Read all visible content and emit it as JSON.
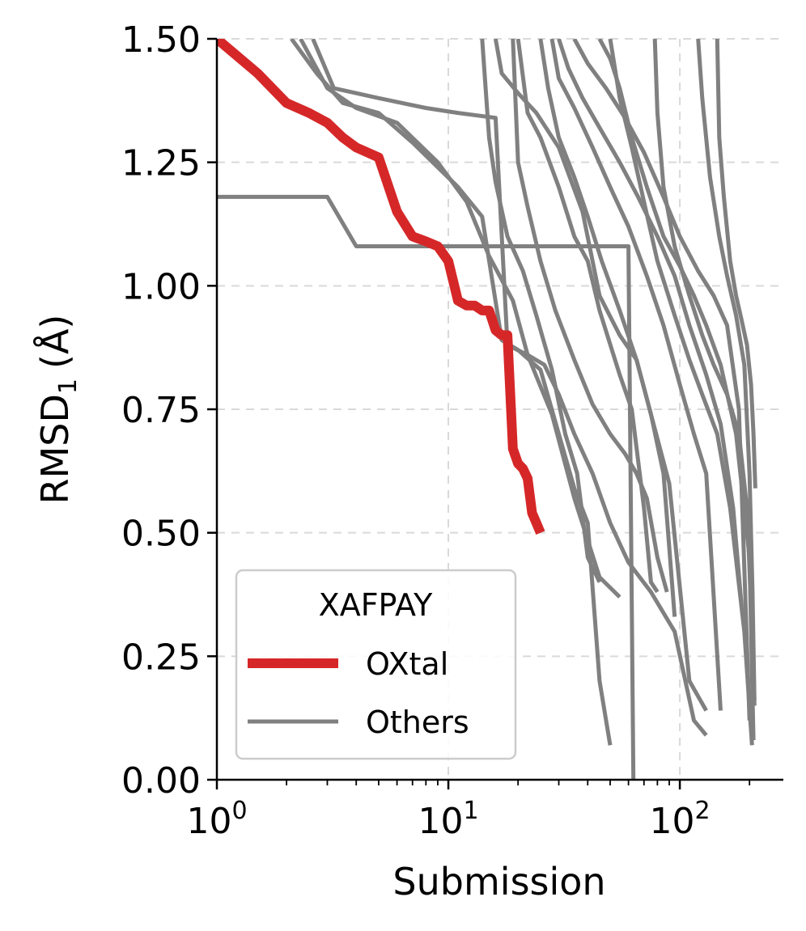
{
  "chart_data": {
    "type": "line",
    "xscale": "log",
    "xlim": [
      1,
      280
    ],
    "ylim": [
      0.0,
      1.5
    ],
    "xlabel": "Submission",
    "ylabel": "RMSD",
    "ylabel_subscript": "1",
    "ylabel_unit": "(Å)",
    "x_ticks": [
      {
        "value": 1,
        "base": "10",
        "exp": "0"
      },
      {
        "value": 10,
        "base": "10",
        "exp": "1"
      },
      {
        "value": 100,
        "base": "10",
        "exp": "2"
      }
    ],
    "y_ticks": [
      {
        "value": 0.0,
        "label": "0.00"
      },
      {
        "value": 0.25,
        "label": "0.25"
      },
      {
        "value": 0.5,
        "label": "0.50"
      },
      {
        "value": 0.75,
        "label": "0.75"
      },
      {
        "value": 1.0,
        "label": "1.00"
      },
      {
        "value": 1.25,
        "label": "1.25"
      },
      {
        "value": 1.5,
        "label": "1.50"
      }
    ],
    "grid": true,
    "legend": {
      "title": "XAFPAY",
      "position": "lower-left",
      "entries": [
        {
          "label": "OXtal",
          "color": "#d62728"
        },
        {
          "label": "Others",
          "color": "#808080"
        }
      ]
    },
    "colors": {
      "highlight": "#d62728",
      "others": "#808080",
      "grid": "#d9d9d9"
    },
    "highlight_series": {
      "name": "OXtal",
      "x": [
        1,
        1.5,
        2,
        2.5,
        3,
        3.5,
        4,
        5,
        6,
        7,
        8,
        9,
        10,
        11,
        12,
        13,
        14,
        15,
        16,
        17,
        18,
        19,
        20,
        21,
        22,
        23,
        24,
        25
      ],
      "y": [
        1.5,
        1.43,
        1.37,
        1.35,
        1.33,
        1.3,
        1.28,
        1.26,
        1.15,
        1.1,
        1.09,
        1.08,
        1.05,
        0.97,
        0.96,
        0.96,
        0.95,
        0.95,
        0.91,
        0.9,
        0.9,
        0.67,
        0.64,
        0.63,
        0.61,
        0.54,
        0.52,
        0.5
      ]
    },
    "other_series": [
      {
        "name": "others-1",
        "x": [
          1,
          3,
          4,
          60,
          63
        ],
        "y": [
          1.18,
          1.18,
          1.08,
          1.08,
          0.0
        ]
      },
      {
        "name": "others-2",
        "x": [
          2.1,
          2.7,
          3.5,
          5,
          7,
          9,
          11,
          14,
          17,
          20,
          25,
          30,
          35,
          40,
          45,
          50
        ],
        "y": [
          1.5,
          1.43,
          1.37,
          1.35,
          1.29,
          1.24,
          1.2,
          1.14,
          0.89,
          0.87,
          0.83,
          0.7,
          0.59,
          0.52,
          0.2,
          0.07
        ]
      },
      {
        "name": "others-3",
        "x": [
          2.6,
          3.2,
          5,
          8,
          11,
          16,
          18,
          22,
          26,
          30,
          35,
          42,
          50,
          60,
          75,
          95,
          115,
          130
        ],
        "y": [
          1.5,
          1.4,
          1.38,
          1.36,
          1.35,
          1.34,
          0.88,
          0.86,
          0.84,
          0.78,
          0.7,
          0.62,
          0.52,
          0.44,
          0.38,
          0.3,
          0.12,
          0.09
        ]
      },
      {
        "name": "others-4",
        "x": [
          2.3,
          3,
          4,
          6,
          9,
          12,
          15,
          19,
          22,
          28,
          35,
          45,
          55
        ],
        "y": [
          1.5,
          1.4,
          1.36,
          1.33,
          1.25,
          1.17,
          1.06,
          0.97,
          0.86,
          0.74,
          0.57,
          0.41,
          0.37
        ]
      },
      {
        "name": "others-5",
        "x": [
          14,
          15,
          16,
          18,
          21,
          24,
          28,
          32,
          36,
          40,
          45
        ],
        "y": [
          1.5,
          1.3,
          1.21,
          1.1,
          1.03,
          0.94,
          0.83,
          0.7,
          0.62,
          0.45,
          0.4
        ]
      },
      {
        "name": "others-6",
        "x": [
          19,
          20,
          22,
          25,
          29,
          35,
          42,
          50,
          58,
          65,
          72,
          80,
          88
        ],
        "y": [
          1.5,
          1.25,
          1.16,
          1.05,
          0.95,
          0.85,
          0.76,
          0.7,
          0.66,
          0.62,
          0.57,
          0.45,
          0.38
        ]
      },
      {
        "name": "others-7",
        "x": [
          16,
          17,
          20,
          24,
          30,
          38,
          45,
          55,
          65,
          75,
          85,
          95
        ],
        "y": [
          1.5,
          1.43,
          1.39,
          1.35,
          1.28,
          1.15,
          0.98,
          0.9,
          0.85,
          0.74,
          0.62,
          0.33
        ]
      },
      {
        "name": "others-8",
        "x": [
          20,
          22,
          25,
          30,
          35,
          40,
          45,
          55,
          62,
          70,
          75,
          80
        ],
        "y": [
          1.5,
          1.35,
          1.3,
          1.2,
          1.1,
          1.05,
          0.95,
          0.82,
          0.75,
          0.55,
          0.4,
          0.38
        ]
      },
      {
        "name": "others-9",
        "x": [
          25,
          27,
          30,
          35,
          40,
          46,
          55,
          65,
          75,
          90,
          110,
          130
        ],
        "y": [
          1.5,
          1.4,
          1.3,
          1.22,
          1.14,
          1.05,
          0.95,
          0.85,
          0.74,
          0.6,
          0.2,
          0.14
        ]
      },
      {
        "name": "others-10",
        "x": [
          28,
          30,
          35,
          42,
          50,
          60,
          72,
          85,
          100,
          115,
          130,
          150
        ],
        "y": [
          1.5,
          1.42,
          1.36,
          1.28,
          1.2,
          1.12,
          1.02,
          0.92,
          0.8,
          0.7,
          0.62,
          0.14
        ]
      },
      {
        "name": "others-11",
        "x": [
          30,
          33,
          38,
          45,
          55,
          66,
          80,
          95,
          110,
          130,
          150,
          170,
          185
        ],
        "y": [
          1.5,
          1.44,
          1.38,
          1.32,
          1.25,
          1.18,
          1.1,
          1.02,
          0.92,
          0.82,
          0.72,
          0.55,
          0.35
        ]
      },
      {
        "name": "others-12",
        "x": [
          35,
          40,
          48,
          58,
          70,
          85,
          100,
          120,
          140,
          160,
          180,
          200
        ],
        "y": [
          1.5,
          1.45,
          1.4,
          1.34,
          1.27,
          1.18,
          1.1,
          1.03,
          0.98,
          0.92,
          0.75,
          0.12
        ]
      },
      {
        "name": "others-13",
        "x": [
          45,
          50,
          55,
          62,
          72,
          85,
          100,
          115,
          130,
          150,
          175,
          200,
          208
        ],
        "y": [
          1.5,
          1.46,
          1.4,
          1.3,
          1.2,
          1.1,
          1.04,
          0.98,
          0.92,
          0.84,
          0.7,
          0.45,
          0.08
        ]
      },
      {
        "name": "others-14",
        "x": [
          50,
          55,
          62,
          70,
          80,
          95,
          110,
          125,
          145,
          165,
          190,
          205
        ],
        "y": [
          1.5,
          1.38,
          1.28,
          1.17,
          1.05,
          0.94,
          0.85,
          0.78,
          0.7,
          0.55,
          0.3,
          0.07
        ]
      },
      {
        "name": "others-15",
        "x": [
          78,
          80,
          85,
          95,
          110,
          125,
          140,
          160,
          180,
          195,
          205,
          210
        ],
        "y": [
          1.5,
          1.35,
          1.2,
          1.08,
          0.98,
          0.9,
          0.84,
          0.78,
          0.7,
          0.55,
          0.3,
          0.15
        ]
      },
      {
        "name": "others-16",
        "x": [
          145,
          148,
          155,
          165,
          175,
          185,
          195,
          203,
          208,
          212
        ],
        "y": [
          1.5,
          1.3,
          1.18,
          1.05,
          0.98,
          0.93,
          0.88,
          0.8,
          0.7,
          0.59
        ]
      },
      {
        "name": "others-17",
        "x": [
          120,
          125,
          135,
          148,
          160,
          175,
          190,
          200,
          206,
          210
        ],
        "y": [
          1.5,
          1.38,
          1.22,
          1.1,
          1.02,
          0.94,
          0.84,
          0.62,
          0.38,
          0.16
        ]
      }
    ]
  }
}
